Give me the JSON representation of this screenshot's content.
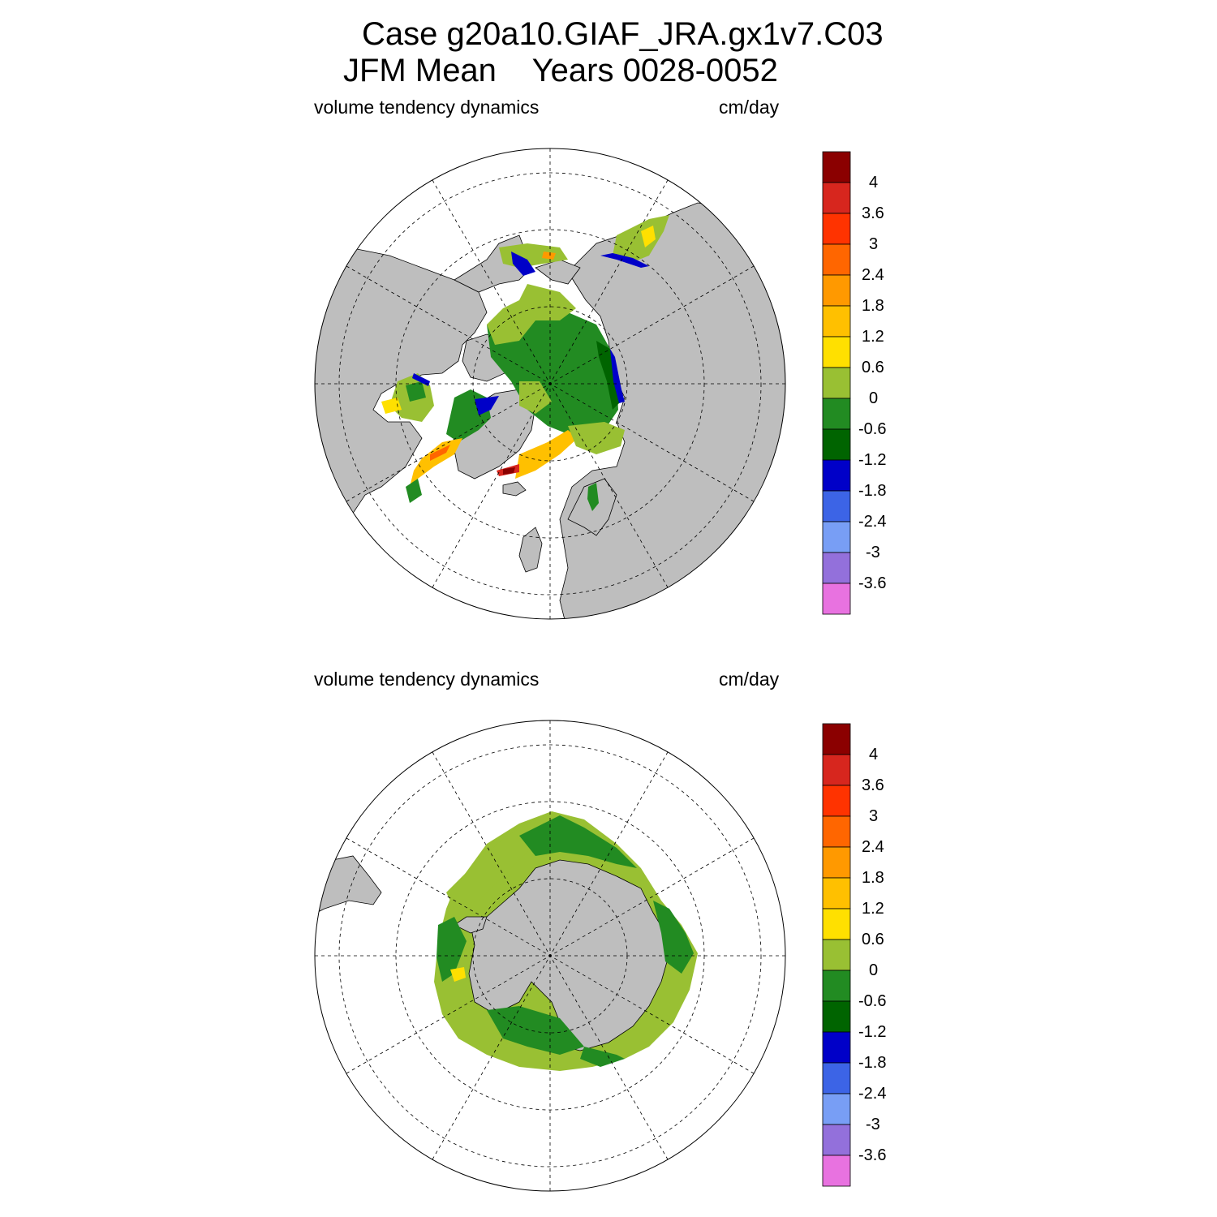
{
  "title": {
    "line1": "Case g20a10.GIAF_JRA.gx1v7.C03",
    "line2": "JFM Mean    Years 0028-0052"
  },
  "panels": [
    {
      "hemisphere": "north",
      "left_label": "volume tendency dynamics",
      "right_label": "cm/day"
    },
    {
      "hemisphere": "south",
      "left_label": "volume tendency dynamics",
      "right_label": "cm/day"
    }
  ],
  "colorbar": {
    "labels": [
      "4",
      "3.6",
      "3",
      "2.4",
      "1.8",
      "1.2",
      "0.6",
      "0",
      "-0.6",
      "-1.2",
      "-1.8",
      "-2.4",
      "-3",
      "-3.6"
    ],
    "colors": [
      "#8b0000",
      "#d7261e",
      "#ff3300",
      "#ff6600",
      "#ff9900",
      "#ffc000",
      "#ffe000",
      "#99c033",
      "#228b22",
      "#006400",
      "#0000c8",
      "#3c64e6",
      "#789ef5",
      "#9370db",
      "#e872e0"
    ]
  },
  "colors": {
    "land": "#bebebe",
    "ocean": "#ffffff",
    "grid": "#000000"
  }
}
